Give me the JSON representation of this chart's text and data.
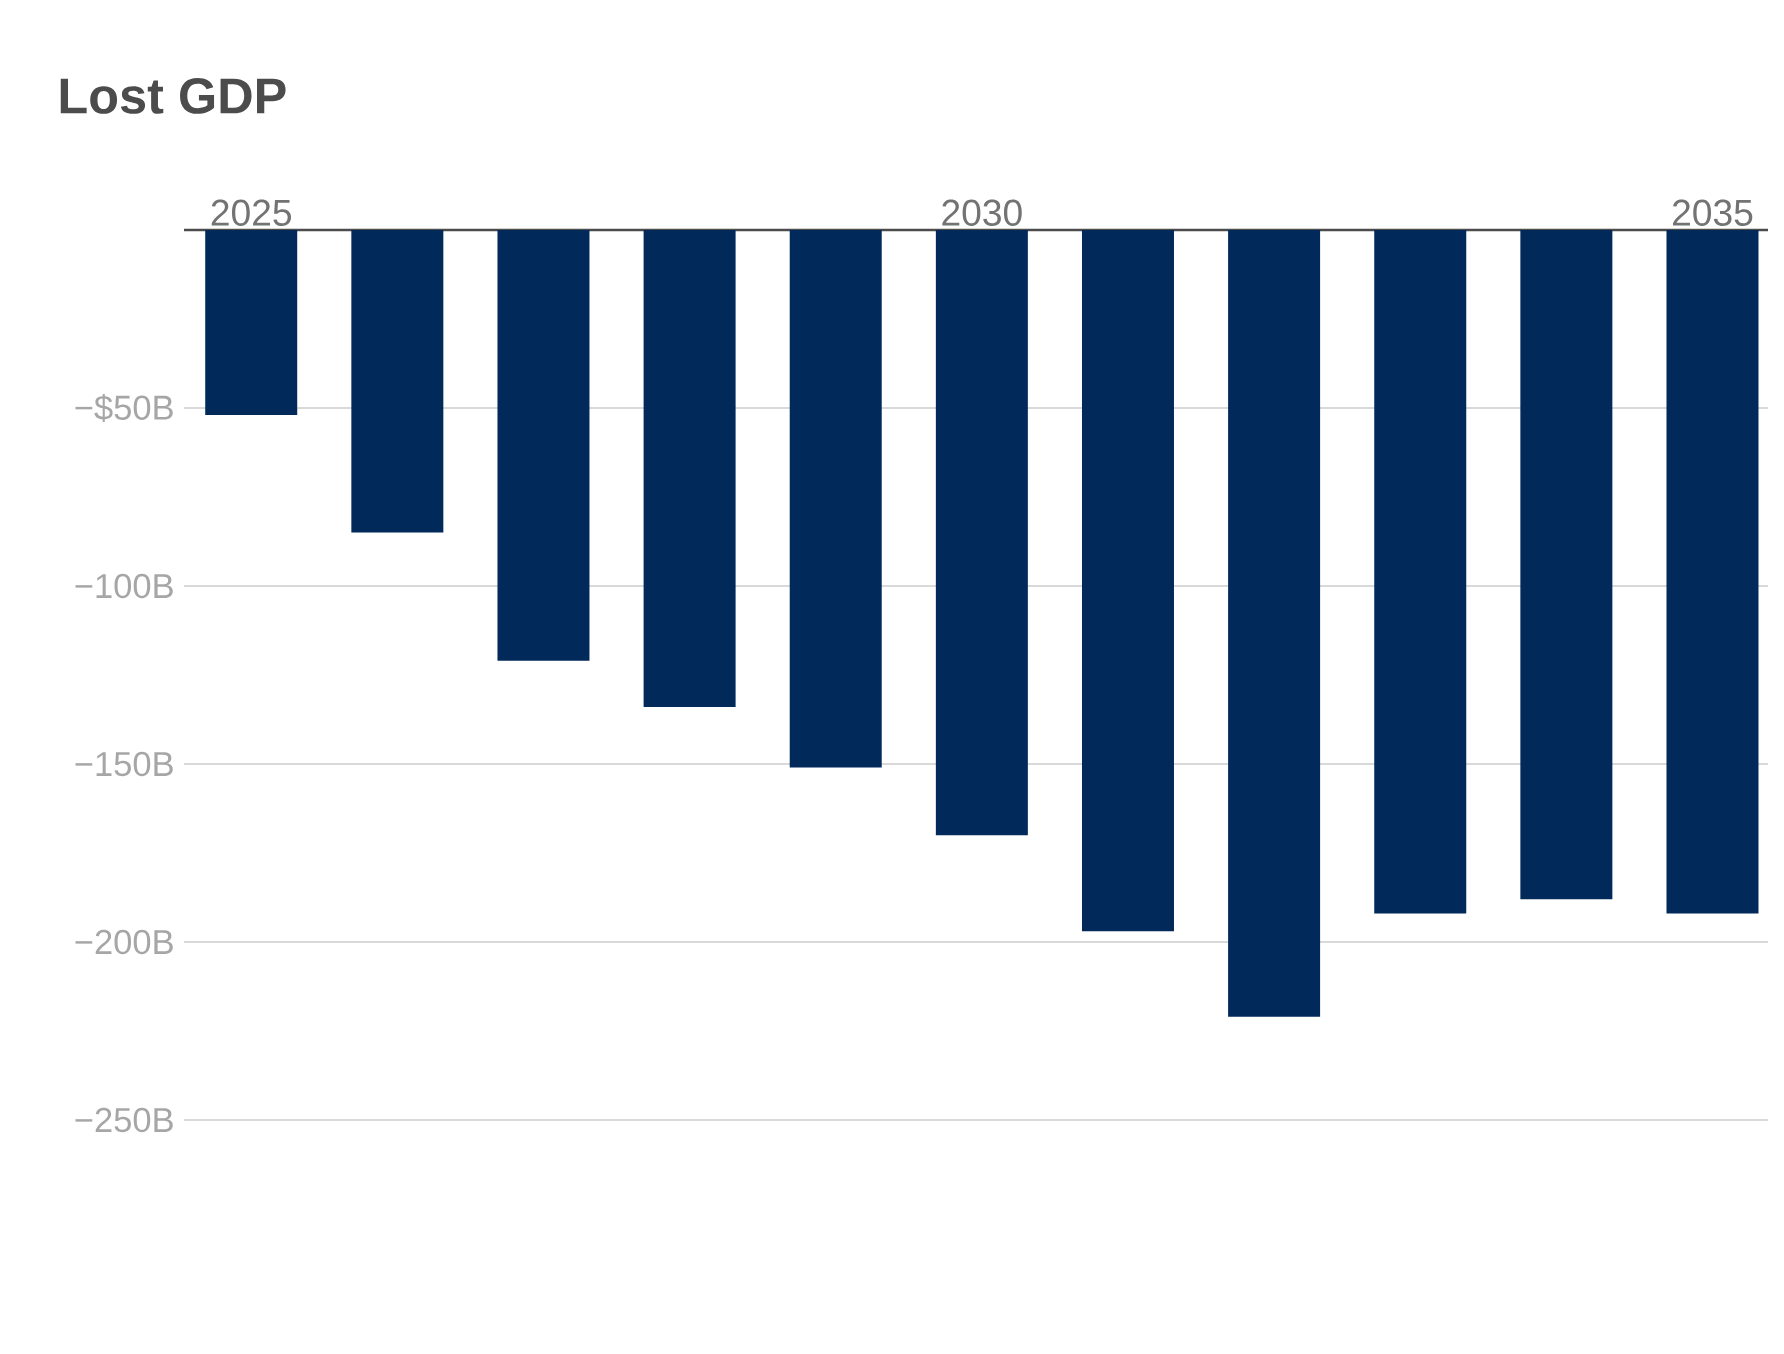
{
  "chart_data": {
    "type": "bar",
    "title": "Lost GDP",
    "categories": [
      "2025",
      null,
      null,
      null,
      null,
      "2030",
      null,
      null,
      null,
      null,
      "2035"
    ],
    "values": [
      -52,
      -85,
      -121,
      -134,
      -151,
      -170,
      -197,
      -221,
      -192,
      -188,
      -192
    ],
    "color": "#012a5a",
    "ylim": [
      -250,
      0
    ],
    "yticks": [
      {
        "value": -250,
        "label": "−250B"
      },
      {
        "value": -200,
        "label": "−200B"
      },
      {
        "value": -150,
        "label": "−150B"
      },
      {
        "value": -100,
        "label": "−100B"
      },
      {
        "value": -50,
        "label": "−$50B"
      }
    ],
    "grid": "y"
  }
}
